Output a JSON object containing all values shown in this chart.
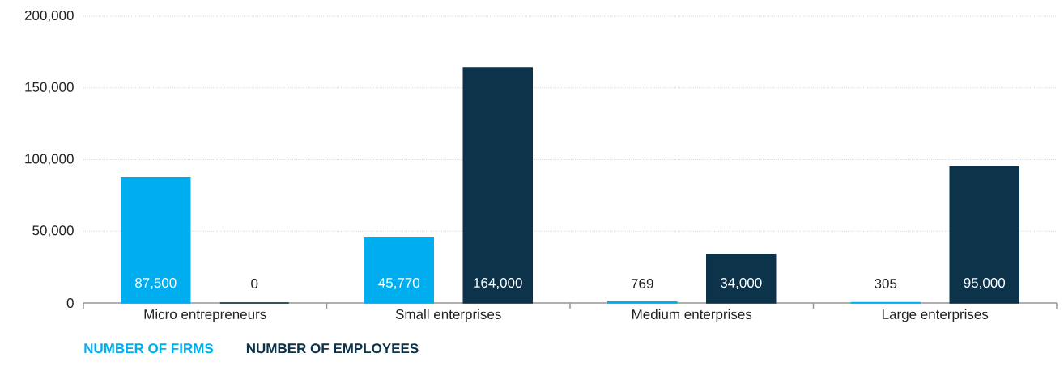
{
  "chart_data": {
    "type": "bar",
    "categories": [
      "Micro entrepreneurs",
      "Small enterprises",
      "Medium enterprises",
      "Large enterprises"
    ],
    "series": [
      {
        "name": "NUMBER OF FIRMS",
        "color": "#00aeef",
        "values": [
          87500,
          45770,
          769,
          305
        ],
        "value_labels": [
          "87,500",
          "45,770",
          "769",
          "305"
        ]
      },
      {
        "name": "NUMBER OF EMPLOYEES",
        "color": "#0d334b",
        "values": [
          0,
          164000,
          34000,
          95000
        ],
        "value_labels": [
          "0",
          "164,000",
          "34,000",
          "95,000"
        ]
      }
    ],
    "ylim": [
      0,
      200000
    ],
    "yticks": [
      0,
      {
        "value": 50000,
        "label": "50,000"
      },
      {
        "value": 100000,
        "label": "100,000"
      },
      {
        "value": 150000,
        "label": "150,000"
      },
      {
        "value": 200000,
        "label": "200,000"
      }
    ],
    "grid": "y",
    "legend": "bottom left"
  }
}
